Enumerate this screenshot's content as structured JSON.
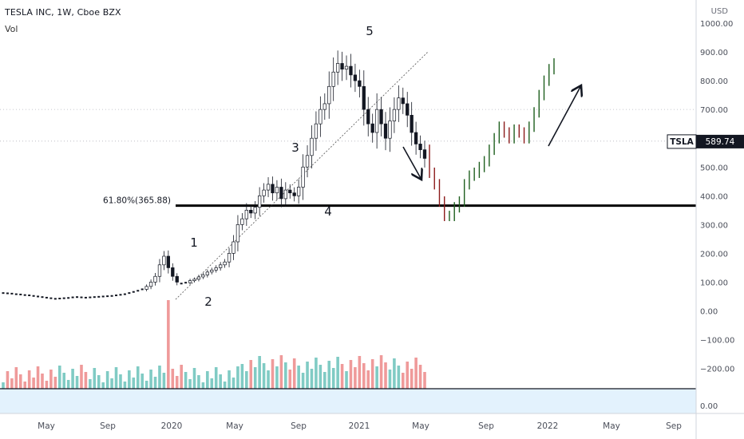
{
  "header": {
    "title": "TESLA INC, 1W, Cboe BZX",
    "volume_label": "Vol"
  },
  "price_axis": {
    "currency": "USD",
    "labels": [
      "1000.00",
      "900.00",
      "800.00",
      "700.00",
      "600.00",
      "500.00",
      "400.00",
      "300.00",
      "200.00",
      "100.00",
      "0.00",
      "−100.00",
      "−200.00"
    ],
    "lower_pane_label": "0.00"
  },
  "time_axis": {
    "labels": [
      "May",
      "Sep",
      "2020",
      "May",
      "Sep",
      "2021",
      "May",
      "Sep",
      "2022",
      "May",
      "Sep"
    ]
  },
  "price_tag": {
    "symbol": "TSLA",
    "value": "589.74"
  },
  "fib_level": {
    "label": "61.80%(365.88)"
  },
  "wave_labels": [
    "1",
    "2",
    "3",
    "4",
    "5"
  ],
  "colors": {
    "up": "#26a69a",
    "down": "#ef5350",
    "projection_up": "#1e5f1e",
    "projection_down": "#8b1a1a",
    "vol_up": "#80cbc4",
    "vol_down": "#ef9a9a",
    "tag_bg": "#131722",
    "text": "#131722",
    "axis_text": "#4a4e59"
  },
  "chart_data": {
    "type": "candlestick",
    "price_range": [
      -240,
      1030
    ],
    "fib_level_value": 365.88,
    "current_price": 589.74,
    "actual_weekly_closes": [
      62,
      61,
      60,
      58,
      57,
      55,
      54,
      52,
      50,
      48,
      46,
      44,
      42,
      43,
      44,
      45,
      47,
      48,
      47,
      46,
      47,
      48,
      49,
      50,
      51,
      52,
      54,
      56,
      58,
      62,
      66,
      70,
      75,
      85,
      100,
      120,
      160,
      190,
      150,
      120,
      100,
      95,
      98,
      105,
      110,
      118,
      125,
      135,
      142,
      150,
      160,
      170,
      200,
      240,
      300,
      320,
      350,
      340,
      360,
      400,
      420,
      440,
      410,
      430,
      390,
      420,
      410,
      400,
      430,
      500,
      540,
      600,
      650,
      700,
      720,
      780,
      830,
      860,
      840,
      850,
      820,
      800,
      780,
      700,
      650,
      620,
      700,
      650,
      600,
      660,
      700,
      740,
      720,
      680,
      620,
      580,
      560,
      530
    ],
    "projection_closes": [
      480,
      440,
      380,
      330,
      330,
      360,
      380,
      440,
      470,
      480,
      500,
      520,
      560,
      600,
      640,
      620,
      600,
      630,
      620,
      600,
      640,
      690,
      750,
      800,
      840,
      860
    ]
  }
}
